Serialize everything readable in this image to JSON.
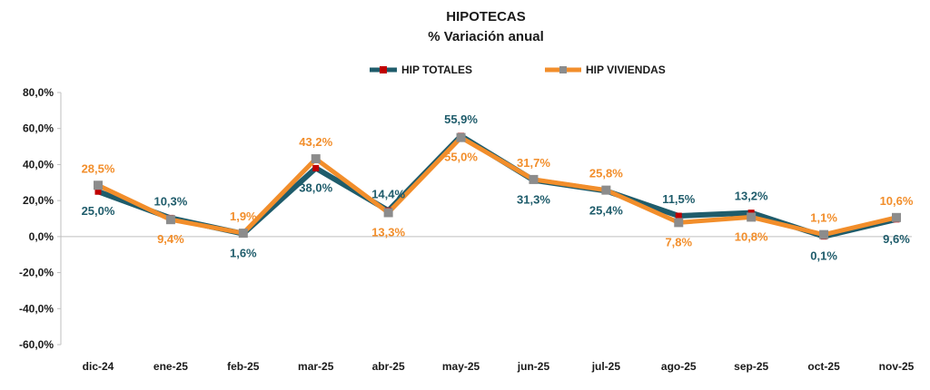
{
  "chart_data": {
    "type": "line",
    "title": "HIPOTECAS",
    "subtitle": "% Variación anual",
    "categories": [
      "dic-24",
      "ene-25",
      "feb-25",
      "mar-25",
      "abr-25",
      "may-25",
      "jun-25",
      "jul-25",
      "ago-25",
      "sep-25",
      "oct-25",
      "nov-25"
    ],
    "ylim": [
      -60,
      80
    ],
    "yticks": [
      80,
      60,
      40,
      20,
      0,
      -20,
      -40,
      -60
    ],
    "ytick_labels": [
      "80,0%",
      "60,0%",
      "40,0%",
      "20,0%",
      "0,0%",
      "-20,0%",
      "-40,0%",
      "-60,0%"
    ],
    "legend_position": "top-center",
    "series": [
      {
        "name": "HIP TOTALES",
        "color": "#1f5c6b",
        "marker_color": "#c00000",
        "values": [
          25.0,
          10.3,
          1.6,
          38.0,
          14.4,
          55.9,
          31.3,
          25.4,
          11.5,
          13.2,
          0.1,
          9.6
        ],
        "labels": [
          "25,0%",
          "10,3%",
          "1,6%",
          "38,0%",
          "14,4%",
          "55,9%",
          "31,3%",
          "25,4%",
          "11,5%",
          "13,2%",
          "0,1%",
          "9,6%"
        ]
      },
      {
        "name": "HIP VIVIENDAS",
        "color": "#f28e2b",
        "marker_color": "#8c8c8c",
        "values": [
          28.5,
          9.4,
          1.9,
          43.2,
          13.3,
          55.0,
          31.7,
          25.8,
          7.8,
          10.8,
          1.1,
          10.6
        ],
        "labels": [
          "28,5%",
          "9,4%",
          "1,9%",
          "43,2%",
          "13,3%",
          "55,0%",
          "31,7%",
          "25,8%",
          "7,8%",
          "10,8%",
          "1,1%",
          "10,6%"
        ]
      }
    ]
  }
}
